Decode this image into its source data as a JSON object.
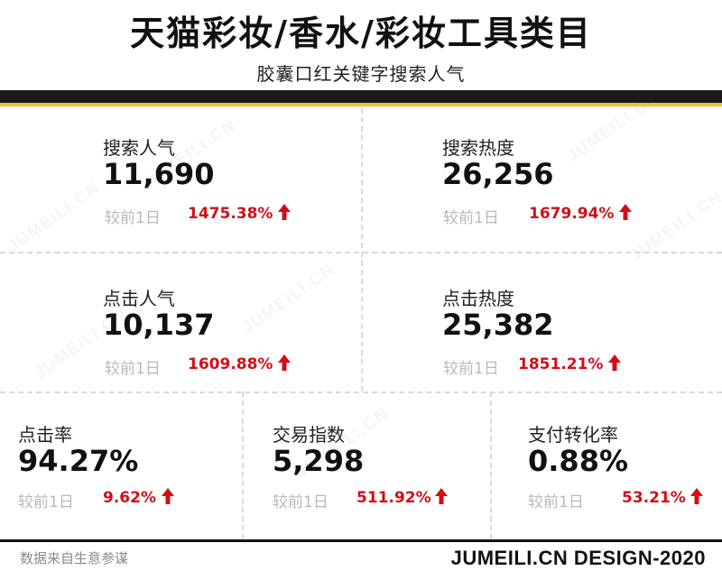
{
  "header": {
    "title": "天猫彩妆/香水/彩妆工具类目",
    "subtitle": "胶囊口红关键字搜索人气"
  },
  "compare_label": "较前1日",
  "metrics": [
    {
      "label": "搜索人气",
      "value": "11,690",
      "change": "1475.38%"
    },
    {
      "label": "搜索热度",
      "value": "26,256",
      "change": "1679.94%"
    },
    {
      "label": "点击人气",
      "value": "10,137",
      "change": "1609.88%"
    },
    {
      "label": "点击热度",
      "value": "25,382",
      "change": "1851.21%"
    },
    {
      "label": "点击率",
      "value": "94.27%",
      "change": "9.62%"
    },
    {
      "label": "交易指数",
      "value": "5,298",
      "change": "511.92%"
    },
    {
      "label": "支付转化率",
      "value": "0.88%",
      "change": "53.21%"
    }
  ],
  "footer": {
    "source": "数据来自生意参谋",
    "brand": "JUMEILI.CN DESIGN-2020"
  },
  "watermark": "JUMEILI.CN",
  "colors": {
    "up": "#d10f17",
    "accent": "#f2c230",
    "bar": "#1a1a1a"
  },
  "icons": {
    "trend": "arrow-up-icon"
  }
}
